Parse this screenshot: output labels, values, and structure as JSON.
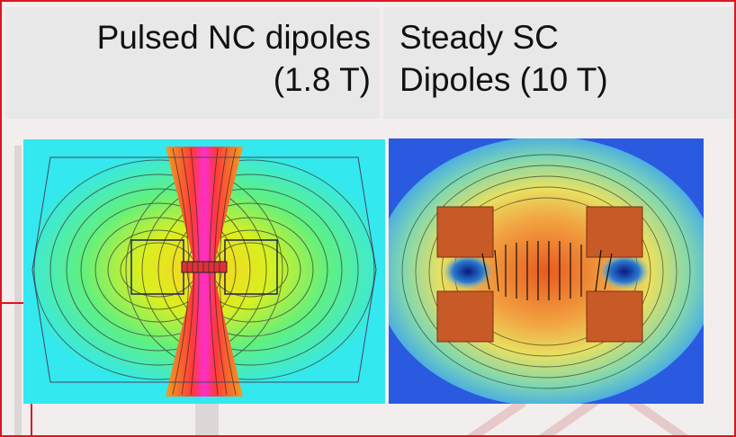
{
  "headers": {
    "left_line1": "Pulsed NC dipoles",
    "left_line2": "(1.8 T)",
    "right_line1": "Steady SC",
    "right_line2": "Dipoles (10 T)"
  },
  "colors": {
    "border": "#e0141e",
    "header_bg": "#e8e8e8",
    "left_bg": "#33e8ee",
    "right_bg": "#2244dd"
  }
}
